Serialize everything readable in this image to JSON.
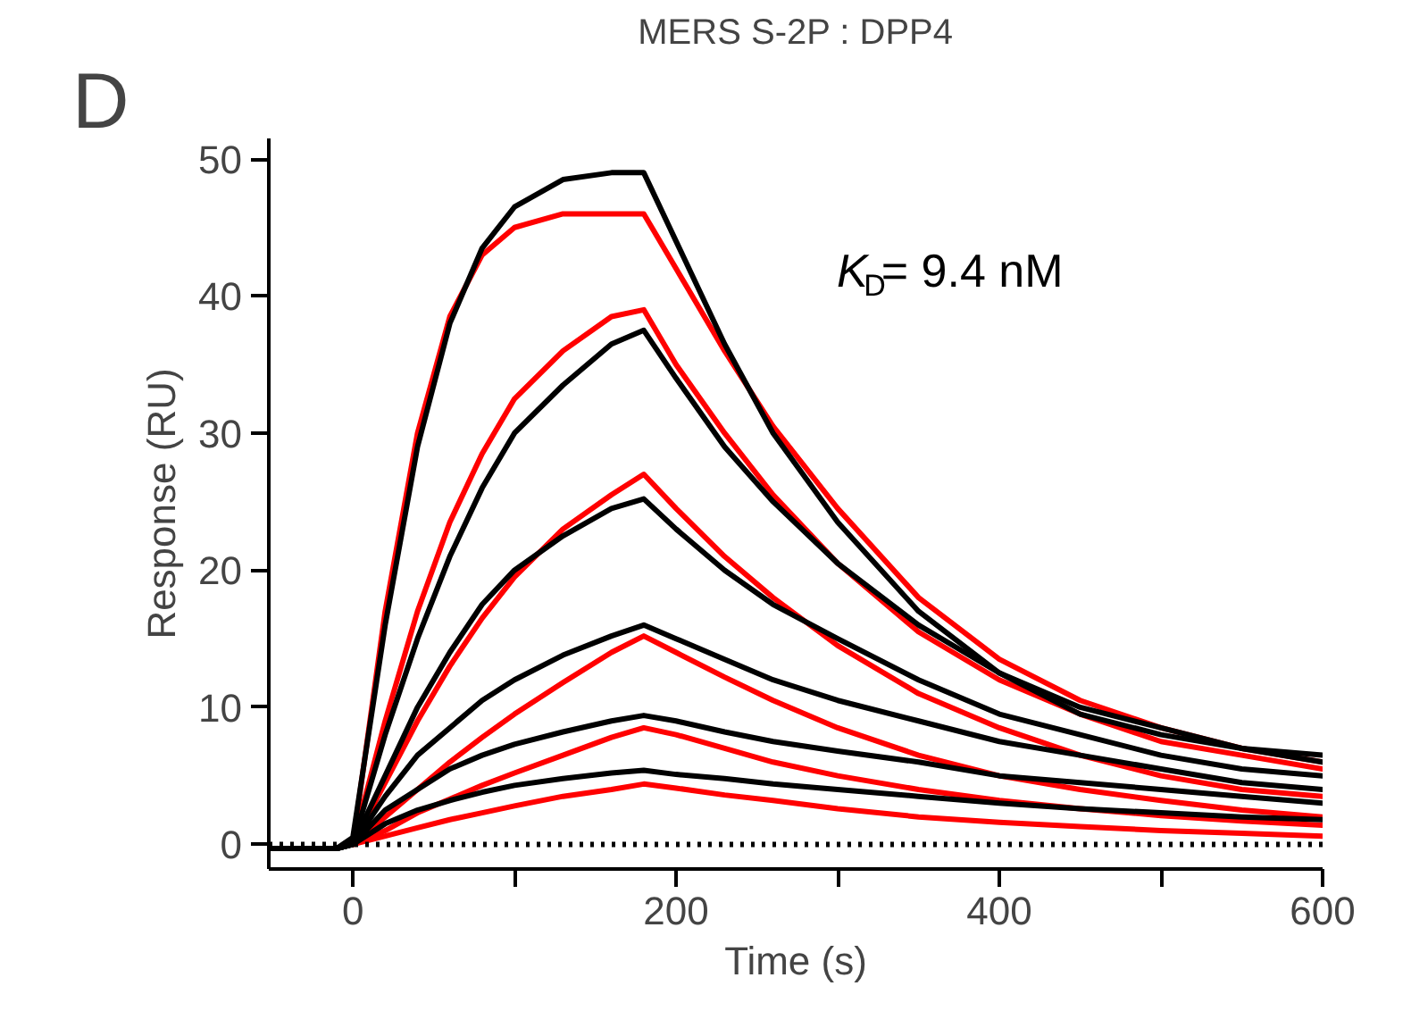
{
  "chart_data": {
    "type": "line",
    "title": "MERS S-2P : DPP4",
    "xlabel": "Time (s)",
    "ylabel": "Response (RU)",
    "annotations": [
      "D",
      "K$_{D}$= 9.4 nM"
    ],
    "xlim": [
      -52,
      600
    ],
    "ylim": [
      -1.8,
      51.5
    ],
    "xticks": [
      0,
      {
        "value": 100,
        "label": null
      },
      200,
      {
        "value": 300,
        "label": null
      },
      400,
      {
        "value": 500,
        "label": null
      },
      600
    ],
    "yticks": [
      0,
      10,
      20,
      30,
      40,
      50
    ],
    "grid": false,
    "marker": "none",
    "line_style": "solid",
    "ref_lines": [
      {
        "axis": "y",
        "value": 0,
        "label": null,
        "color": "#000000",
        "line_style": "dotted"
      }
    ],
    "series": [
      {
        "color": "#ff0000",
        "x": [
          0,
          20,
          40,
          60,
          80,
          100,
          130,
          160,
          180,
          200,
          230,
          260,
          300,
          350,
          400,
          450,
          500,
          550,
          600
        ],
        "values": [
          0,
          17,
          30,
          38.5,
          43,
          45,
          46,
          46,
          46,
          42,
          36,
          30.5,
          24.5,
          18,
          13.5,
          10.5,
          8.5,
          7,
          6
        ]
      },
      {
        "color": "#ff0000",
        "x": [
          0,
          20,
          40,
          60,
          80,
          100,
          130,
          160,
          180,
          200,
          230,
          260,
          300,
          350,
          400,
          450,
          500,
          550,
          600
        ],
        "values": [
          0,
          9,
          17,
          23.5,
          28.5,
          32.5,
          36,
          38.5,
          39,
          35,
          30,
          25.5,
          20.5,
          15.5,
          12,
          9.5,
          7.5,
          6.5,
          5.5
        ]
      },
      {
        "color": "#ff0000",
        "x": [
          0,
          20,
          40,
          60,
          80,
          100,
          130,
          160,
          180,
          200,
          230,
          260,
          300,
          350,
          400,
          450,
          500,
          550,
          600
        ],
        "values": [
          0,
          4.5,
          9,
          13,
          16.5,
          19.5,
          23,
          25.5,
          27,
          24.5,
          21,
          18,
          14.5,
          11,
          8.5,
          6.5,
          5,
          4,
          3.5
        ]
      },
      {
        "color": "#ff0000",
        "x": [
          0,
          20,
          40,
          60,
          80,
          100,
          130,
          160,
          180,
          200,
          230,
          260,
          300,
          350,
          400,
          450,
          500,
          550,
          600
        ],
        "values": [
          0,
          2,
          4,
          6,
          7.8,
          9.5,
          11.8,
          14,
          15.2,
          14,
          12.2,
          10.5,
          8.5,
          6.5,
          5,
          4,
          3.2,
          2.5,
          2
        ]
      },
      {
        "color": "#ff0000",
        "x": [
          0,
          20,
          40,
          60,
          80,
          100,
          130,
          160,
          180,
          200,
          230,
          260,
          300,
          350,
          400,
          450,
          500,
          550,
          600
        ],
        "values": [
          0,
          1,
          2.3,
          3.3,
          4.3,
          5.2,
          6.5,
          7.8,
          8.5,
          8,
          7,
          6,
          5,
          4,
          3.2,
          2.6,
          2.1,
          1.7,
          1.4
        ]
      },
      {
        "color": "#ff0000",
        "x": [
          0,
          20,
          40,
          60,
          80,
          100,
          130,
          160,
          180,
          200,
          230,
          260,
          300,
          350,
          400,
          450,
          500,
          550,
          600
        ],
        "values": [
          0,
          0.6,
          1.2,
          1.8,
          2.3,
          2.8,
          3.5,
          4,
          4.4,
          4.1,
          3.6,
          3.2,
          2.6,
          2,
          1.6,
          1.3,
          1,
          0.8,
          0.6
        ]
      },
      {
        "color": "#000000",
        "x": [
          -50,
          -10,
          0,
          20,
          40,
          60,
          80,
          100,
          130,
          160,
          180,
          200,
          230,
          260,
          300,
          350,
          400,
          450,
          500,
          550,
          600
        ],
        "values": [
          -0.3,
          -0.3,
          0.5,
          16,
          29,
          38,
          43.5,
          46.5,
          48.5,
          49,
          49,
          44,
          36.5,
          30,
          23.5,
          17,
          12.5,
          9.5,
          8,
          7,
          6.5
        ]
      },
      {
        "color": "#000000",
        "x": [
          -50,
          -10,
          0,
          20,
          40,
          60,
          80,
          100,
          130,
          160,
          180,
          200,
          230,
          260,
          300,
          350,
          400,
          450,
          500,
          550,
          600
        ],
        "values": [
          -0.3,
          -0.3,
          0,
          8,
          15,
          21,
          26,
          30,
          33.5,
          36.5,
          37.5,
          34,
          29,
          25,
          20.5,
          16,
          12.5,
          10,
          8.5,
          7,
          6
        ]
      },
      {
        "color": "#000000",
        "x": [
          -50,
          -10,
          0,
          20,
          40,
          60,
          80,
          100,
          130,
          160,
          180,
          200,
          230,
          260,
          300,
          350,
          400,
          450,
          500,
          550,
          600
        ],
        "values": [
          -0.3,
          -0.3,
          0,
          5,
          10,
          14,
          17.5,
          20,
          22.5,
          24.5,
          25.2,
          23,
          20,
          17.5,
          15,
          12,
          9.5,
          8,
          6.5,
          5.5,
          5
        ]
      },
      {
        "color": "#000000",
        "x": [
          -50,
          -10,
          0,
          20,
          40,
          60,
          80,
          100,
          130,
          160,
          180,
          200,
          230,
          260,
          300,
          350,
          400,
          450,
          500,
          550,
          600
        ],
        "values": [
          -0.3,
          -0.3,
          0,
          3.5,
          6.5,
          8.5,
          10.5,
          12,
          13.8,
          15.2,
          16,
          15,
          13.5,
          12,
          10.5,
          9,
          7.5,
          6.5,
          5.5,
          4.5,
          4
        ]
      },
      {
        "color": "#000000",
        "x": [
          -50,
          -10,
          0,
          20,
          40,
          60,
          80,
          100,
          130,
          160,
          180,
          200,
          230,
          260,
          300,
          350,
          400,
          450,
          500,
          550,
          600
        ],
        "values": [
          -0.3,
          -0.3,
          0,
          2.5,
          4,
          5.5,
          6.5,
          7.3,
          8.2,
          9,
          9.4,
          9,
          8.2,
          7.5,
          6.8,
          6,
          5,
          4.5,
          4,
          3.5,
          3
        ]
      },
      {
        "color": "#000000",
        "x": [
          -50,
          -10,
          0,
          20,
          40,
          60,
          80,
          100,
          130,
          160,
          180,
          200,
          230,
          260,
          300,
          350,
          400,
          450,
          500,
          550,
          600
        ],
        "values": [
          -0.3,
          -0.3,
          0,
          1.5,
          2.5,
          3.2,
          3.8,
          4.3,
          4.8,
          5.2,
          5.4,
          5.1,
          4.8,
          4.4,
          4,
          3.5,
          3,
          2.6,
          2.3,
          2,
          1.8
        ]
      }
    ]
  }
}
